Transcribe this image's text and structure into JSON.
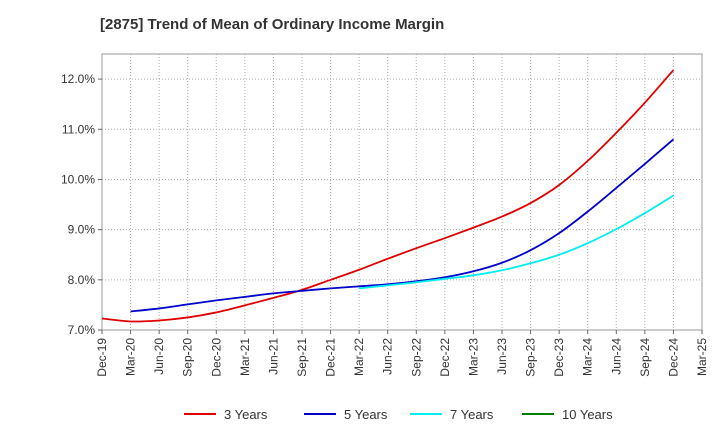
{
  "chart_data": {
    "type": "line",
    "title": "[2875]  Trend of Mean of Ordinary Income Margin",
    "xlabel": "",
    "ylabel": "",
    "x_ticks": [
      "Dec-19",
      "Mar-20",
      "Jun-20",
      "Sep-20",
      "Dec-20",
      "Mar-21",
      "Jun-21",
      "Sep-21",
      "Dec-21",
      "Mar-22",
      "Jun-22",
      "Sep-22",
      "Dec-22",
      "Mar-23",
      "Jun-23",
      "Sep-23",
      "Dec-23",
      "Mar-24",
      "Jun-24",
      "Sep-24",
      "Dec-24",
      "Mar-25"
    ],
    "y_ticks": [
      "7.0%",
      "8.0%",
      "9.0%",
      "10.0%",
      "11.0%",
      "12.0%"
    ],
    "ylim": [
      7.0,
      12.5
    ],
    "y_unit": "%",
    "grid": true,
    "legend_position": "bottom",
    "series": [
      {
        "name": "3 Years",
        "color": "#e00000",
        "x": [
          "Dec-19",
          "Mar-20",
          "Jun-20",
          "Sep-20",
          "Dec-20",
          "Mar-21",
          "Jun-21",
          "Sep-21",
          "Dec-21",
          "Mar-22",
          "Jun-22",
          "Sep-22",
          "Dec-22",
          "Mar-23",
          "Jun-23",
          "Sep-23",
          "Dec-23",
          "Mar-24",
          "Jun-24",
          "Sep-24",
          "Dec-24"
        ],
        "values": [
          7.23,
          7.17,
          7.19,
          7.25,
          7.35,
          7.49,
          7.64,
          7.8,
          8.0,
          8.2,
          8.42,
          8.63,
          8.83,
          9.04,
          9.26,
          9.53,
          9.89,
          10.37,
          10.93,
          11.53,
          12.18
        ]
      },
      {
        "name": "5 Years",
        "color": "#0000cc",
        "x": [
          "Mar-20",
          "Jun-20",
          "Sep-20",
          "Dec-20",
          "Mar-21",
          "Jun-21",
          "Sep-21",
          "Dec-21",
          "Mar-22",
          "Jun-22",
          "Sep-22",
          "Dec-22",
          "Mar-23",
          "Jun-23",
          "Sep-23",
          "Dec-23",
          "Mar-24",
          "Jun-24",
          "Sep-24",
          "Dec-24"
        ],
        "values": [
          7.37,
          7.43,
          7.51,
          7.59,
          7.66,
          7.73,
          7.78,
          7.83,
          7.87,
          7.91,
          7.97,
          8.05,
          8.17,
          8.34,
          8.59,
          8.93,
          9.36,
          9.83,
          10.31,
          10.8
        ]
      },
      {
        "name": "7 Years",
        "color": "#00eeee",
        "x": [
          "Mar-22",
          "Jun-22",
          "Sep-22",
          "Dec-22",
          "Mar-23",
          "Jun-23",
          "Sep-23",
          "Dec-23",
          "Mar-24",
          "Jun-24",
          "Sep-24",
          "Dec-24"
        ],
        "values": [
          7.83,
          7.89,
          7.95,
          8.02,
          8.09,
          8.19,
          8.33,
          8.5,
          8.73,
          9.01,
          9.33,
          9.68
        ]
      },
      {
        "name": "10 Years",
        "color": "#008000",
        "x": [],
        "values": []
      }
    ]
  }
}
